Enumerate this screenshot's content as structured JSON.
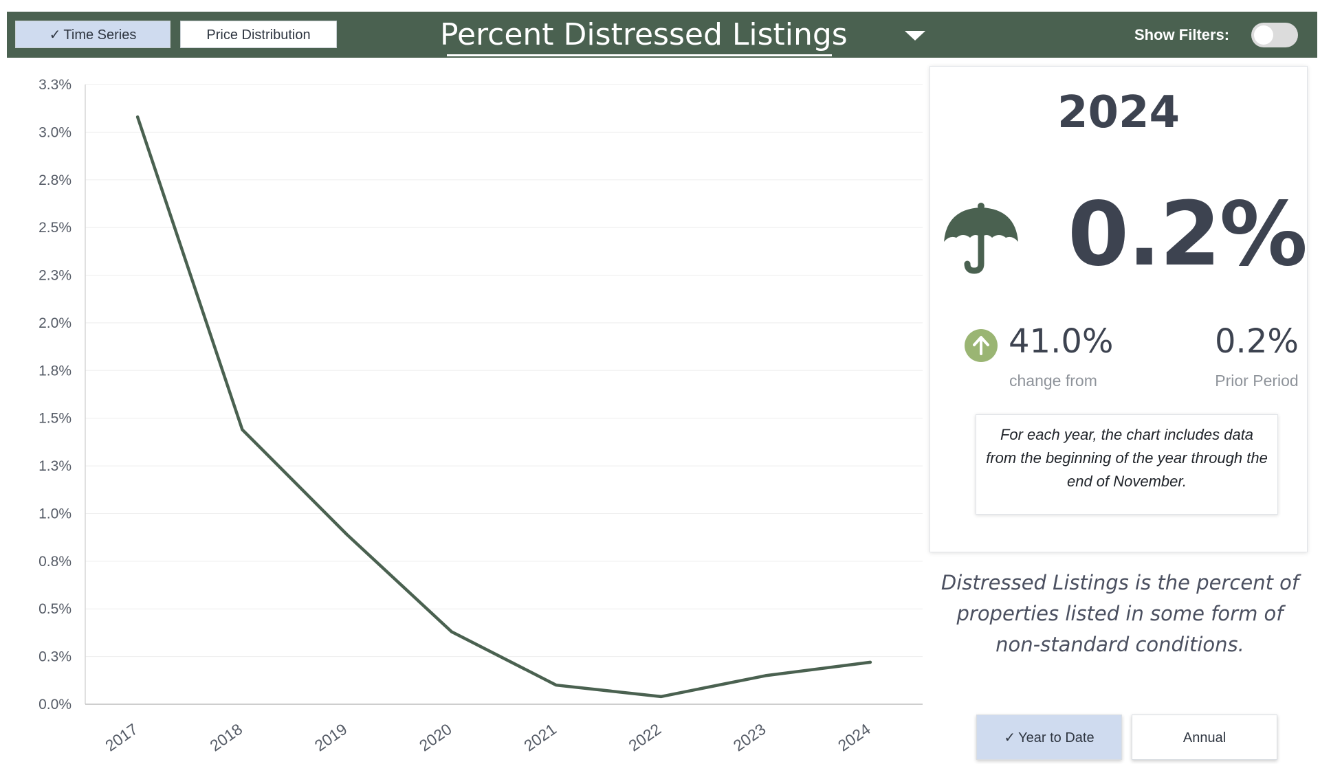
{
  "header": {
    "tabs": [
      {
        "label": "Time Series",
        "selected": true
      },
      {
        "label": "Price Distribution",
        "selected": false
      }
    ],
    "title": "Percent Distressed Listings",
    "filters_label": "Show Filters:",
    "filters_enabled": false
  },
  "chart_data": {
    "type": "line",
    "title": "",
    "xlabel": "",
    "ylabel": "",
    "categories": [
      "2017",
      "2018",
      "2019",
      "2020",
      "2021",
      "2022",
      "2023",
      "2024"
    ],
    "series": [
      {
        "values": [
          3.08,
          1.44,
          0.89,
          0.38,
          0.1,
          0.04,
          0.15,
          0.22
        ]
      }
    ],
    "y_ticks": [
      "0.0%",
      "0.3%",
      "0.5%",
      "0.8%",
      "1.0%",
      "1.3%",
      "1.5%",
      "1.8%",
      "2.0%",
      "2.3%",
      "2.5%",
      "2.8%",
      "3.0%",
      "3.3%"
    ],
    "ylim": [
      0,
      3.25
    ],
    "grid": true,
    "line_color": "#4a6150"
  },
  "summary": {
    "year": "2024",
    "value": "0.2%",
    "icon": "umbrella-icon",
    "change_value": "41.0%",
    "change_label": "change from",
    "change_direction": "up",
    "prior_value": "0.2%",
    "prior_label": "Prior Period",
    "note": "For each year, the chart includes data from the beginning of the year through the end of November."
  },
  "description": "Distressed Listings is the percent of properties listed in some form of non-standard conditions.",
  "period_buttons": [
    {
      "label": "Year to Date",
      "selected": true
    },
    {
      "label": "Annual",
      "selected": false
    }
  ],
  "colors": {
    "header_bg": "#4a6150",
    "accent_green": "#9ab573",
    "selected_button": "#cfdbef"
  }
}
